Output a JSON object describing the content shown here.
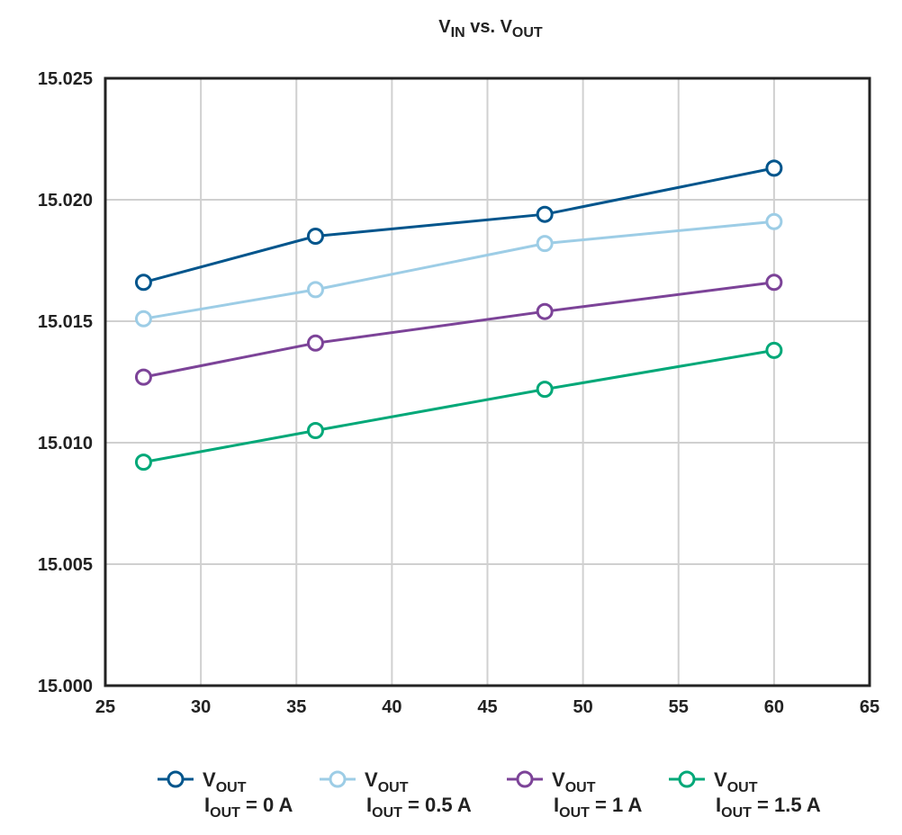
{
  "chart_data": {
    "type": "line",
    "title": {
      "main1": "V",
      "sub1": "IN",
      "mid": " vs. ",
      "main2": "V",
      "sub2": "OUT"
    },
    "xlabel": "",
    "ylabel": "",
    "xlim": [
      25,
      65
    ],
    "ylim": [
      15.0,
      15.025
    ],
    "xticks": [
      "25",
      "30",
      "35",
      "40",
      "45",
      "50",
      "55",
      "60",
      "65"
    ],
    "yticks": [
      "15.000",
      "15.005",
      "15.010",
      "15.015",
      "15.020",
      "15.025"
    ],
    "grid": true,
    "legend_position": "bottom",
    "x": [
      27,
      36,
      48,
      60
    ],
    "series": [
      {
        "name": "VOUT IOUT = 0 A",
        "line1": "V",
        "line1_sub": "OUT",
        "line2": "I",
        "line2_sub": "OUT",
        "line2_rest": " = 0 A",
        "color": "#00558c",
        "values": [
          15.0166,
          15.0185,
          15.0194,
          15.0213
        ]
      },
      {
        "name": "VOUT IOUT = 0.5 A",
        "line1": "V",
        "line1_sub": "OUT",
        "line2": "I",
        "line2_sub": "OUT",
        "line2_rest": " = 0.5 A",
        "color": "#9dcde6",
        "values": [
          15.0151,
          15.0163,
          15.0182,
          15.0191
        ]
      },
      {
        "name": "VOUT IOUT = 1 A",
        "line1": "V",
        "line1_sub": "OUT",
        "line2": "I",
        "line2_sub": "OUT",
        "line2_rest": " = 1 A",
        "color": "#7c4398",
        "values": [
          15.0127,
          15.0141,
          15.0154,
          15.0166
        ]
      },
      {
        "name": "VOUT IOUT = 1.5 A",
        "line1": "V",
        "line1_sub": "OUT",
        "line2": "I",
        "line2_sub": "OUT",
        "line2_rest": " = 1.5 A",
        "color": "#00a878",
        "values": [
          15.0092,
          15.0105,
          15.0122,
          15.0138
        ]
      }
    ]
  }
}
